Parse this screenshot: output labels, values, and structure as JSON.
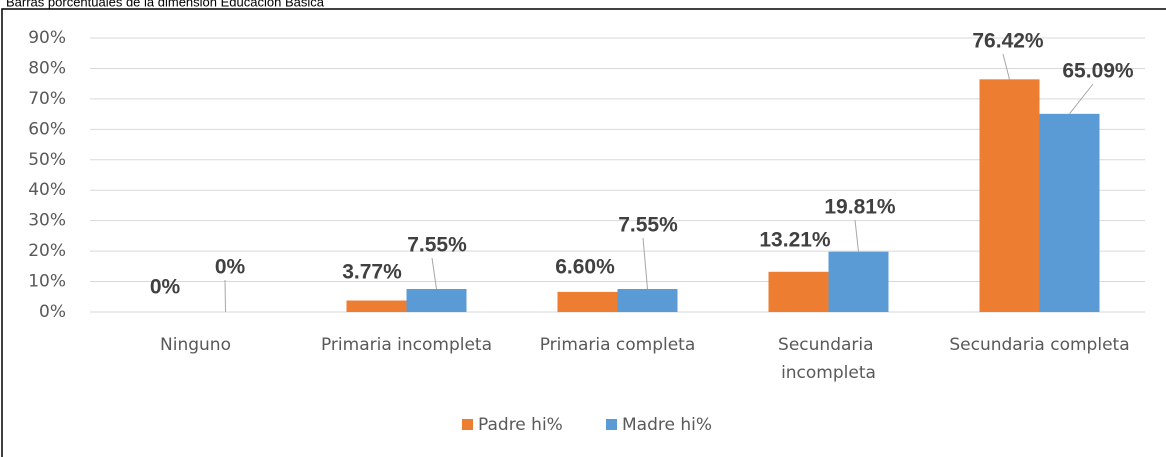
{
  "chart_data": {
    "type": "bar",
    "title": "Barras porcentuales de la dimensión Educación Básica",
    "categories": [
      "Ninguno",
      "Primaria incompleta",
      "Primaria completa",
      "Secundaria incompleta",
      "Secundaria completa"
    ],
    "series": [
      {
        "name": "Padre hi%",
        "color": "#ed7d31",
        "values": [
          0,
          3.77,
          6.6,
          13.21,
          76.42
        ],
        "value_labels": [
          "0%",
          "3.77%",
          "6.60%",
          "13.21%",
          "76.42%"
        ]
      },
      {
        "name": "Madre hi%",
        "color": "#5b9bd5",
        "values": [
          0,
          7.55,
          7.55,
          19.81,
          65.09
        ],
        "value_labels": [
          "0%",
          "7.55%",
          "7.55%",
          "19.81%",
          "65.09%"
        ]
      }
    ],
    "ylim": [
      0,
      90
    ],
    "yticks": [
      {
        "value": 0,
        "label": "0%"
      },
      {
        "value": 10,
        "label": "10%"
      },
      {
        "value": 20,
        "label": "20%"
      },
      {
        "value": 30,
        "label": "30%"
      },
      {
        "value": 40,
        "label": "40%"
      },
      {
        "value": 50,
        "label": "50%"
      },
      {
        "value": 60,
        "label": "60%"
      },
      {
        "value": 70,
        "label": "70%"
      },
      {
        "value": 80,
        "label": "80%"
      },
      {
        "value": 90,
        "label": "90%"
      }
    ],
    "grid": true,
    "legend": "bottom"
  }
}
